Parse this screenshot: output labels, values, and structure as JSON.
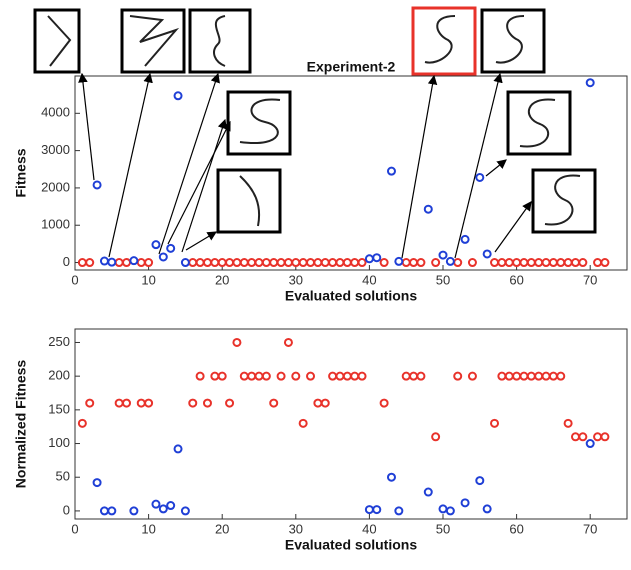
{
  "chart_data": [
    {
      "type": "scatter",
      "title": "Experiment-2",
      "xlabel": "Evaluated solutions",
      "ylabel": "Fitness",
      "xlim": [
        0,
        75
      ],
      "xticks": [
        0,
        10,
        20,
        30,
        40,
        50,
        60,
        70
      ],
      "ylim": [
        -200,
        5000
      ],
      "yticks": [
        0,
        1000,
        2000,
        3000,
        4000
      ],
      "series": [
        {
          "color": "#e8322a",
          "x": [
            1,
            2,
            6,
            7,
            9,
            10,
            16,
            17,
            18,
            19,
            20,
            21,
            22,
            23,
            24,
            25,
            26,
            27,
            28,
            29,
            30,
            31,
            32,
            33,
            34,
            35,
            36,
            37,
            38,
            39,
            42,
            45,
            46,
            47,
            49,
            52,
            54,
            57,
            58,
            59,
            60,
            61,
            62,
            63,
            64,
            65,
            66,
            67,
            68,
            69,
            71,
            72
          ],
          "values": [
            0,
            0,
            0,
            0,
            0,
            0,
            0,
            0,
            0,
            0,
            0,
            0,
            0,
            0,
            0,
            0,
            0,
            0,
            0,
            0,
            0,
            0,
            0,
            0,
            0,
            0,
            0,
            0,
            0,
            0,
            0,
            0,
            0,
            0,
            0,
            0,
            0,
            0,
            0,
            0,
            0,
            0,
            0,
            0,
            0,
            0,
            0,
            0,
            0,
            0,
            0,
            0
          ]
        },
        {
          "color": "#1f3fd6",
          "x": [
            3,
            4,
            5,
            8,
            11,
            12,
            13,
            14,
            15,
            40,
            41,
            43,
            44,
            48,
            50,
            51,
            53,
            55,
            56,
            70
          ],
          "values": [
            2080,
            40,
            10,
            50,
            480,
            150,
            380,
            4470,
            0,
            100,
            130,
            2450,
            30,
            1430,
            200,
            30,
            620,
            2280,
            230,
            4820
          ]
        }
      ]
    },
    {
      "type": "scatter",
      "xlabel": "Evaluated solutions",
      "ylabel": "Normalized Fitness",
      "xlim": [
        0,
        75
      ],
      "xticks": [
        0,
        10,
        20,
        30,
        40,
        50,
        60,
        70
      ],
      "ylim": [
        -12,
        270
      ],
      "yticks": [
        0,
        50,
        100,
        150,
        200,
        250
      ],
      "series": [
        {
          "color": "#e8322a",
          "x": [
            1,
            2,
            6,
            7,
            9,
            10,
            16,
            17,
            18,
            19,
            20,
            21,
            22,
            23,
            24,
            25,
            26,
            27,
            28,
            29,
            30,
            31,
            32,
            33,
            34,
            35,
            36,
            37,
            38,
            39,
            42,
            45,
            46,
            47,
            49,
            52,
            54,
            57,
            58,
            59,
            60,
            61,
            62,
            63,
            64,
            65,
            66,
            67,
            68,
            69,
            71,
            72
          ],
          "values": [
            130,
            160,
            160,
            160,
            160,
            160,
            160,
            200,
            160,
            200,
            200,
            160,
            250,
            200,
            200,
            200,
            200,
            160,
            200,
            250,
            200,
            130,
            200,
            160,
            160,
            200,
            200,
            200,
            200,
            200,
            160,
            200,
            200,
            200,
            110,
            200,
            200,
            130,
            200,
            200,
            200,
            200,
            200,
            200,
            200,
            200,
            200,
            130,
            110,
            110,
            110,
            110
          ]
        },
        {
          "color": "#1f3fd6",
          "x": [
            3,
            4,
            5,
            8,
            11,
            12,
            13,
            14,
            15,
            40,
            41,
            43,
            44,
            48,
            50,
            51,
            53,
            55,
            56,
            70
          ],
          "values": [
            42,
            0,
            0,
            0,
            10,
            3,
            8,
            92,
            0,
            2,
            2,
            50,
            0,
            28,
            3,
            0,
            12,
            45,
            3,
            100
          ]
        }
      ]
    }
  ]
}
